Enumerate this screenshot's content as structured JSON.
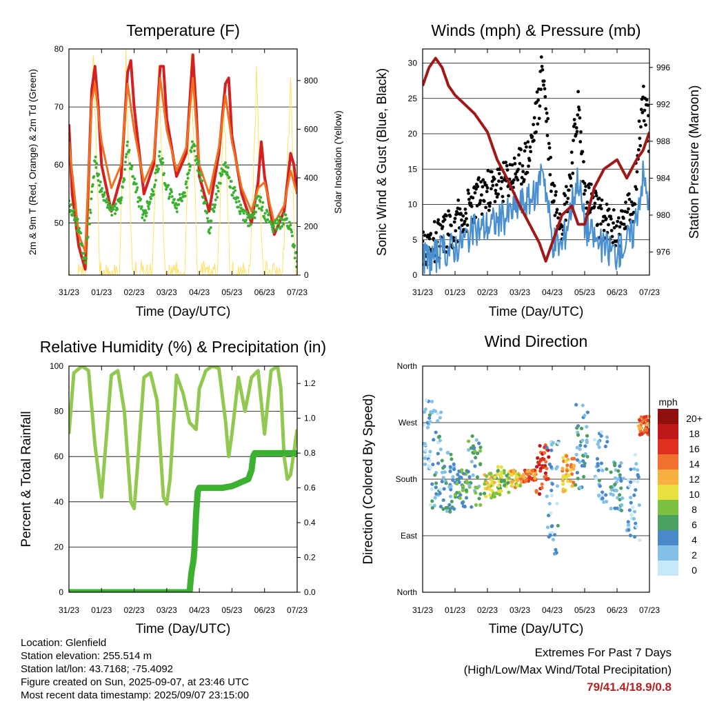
{
  "chart_data": [
    {
      "type": "line",
      "title": "Temperature (F)",
      "xlabel": "Time (Day/UTC)",
      "ylabel": "2m & 9m T (Red, Orange) & 2m Td (Green)",
      "y2label": "Solar Insolation (Yellow)",
      "ylim": [
        41,
        80
      ],
      "y2lim": [
        0,
        930
      ],
      "yticks": [
        "50",
        "60",
        "70",
        "80"
      ],
      "y2ticks": [
        "0",
        "200",
        "400",
        "600",
        "800"
      ],
      "x_ticks": [
        "31/23",
        "01/23",
        "02/23",
        "03/23",
        "04/23",
        "05/23",
        "06/23",
        "07/23"
      ],
      "series": [
        {
          "name": "2m T",
          "color": "#d42020",
          "x": [
            0,
            0.1,
            0.3,
            0.5,
            0.7,
            0.8,
            0.9,
            1.0,
            1.3,
            1.6,
            1.8,
            1.9,
            2.0,
            2.3,
            2.6,
            2.8,
            2.9,
            3.0,
            3.3,
            3.6,
            3.8,
            3.9,
            4.0,
            4.3,
            4.6,
            4.8,
            4.9,
            5.0,
            5.3,
            5.6,
            5.8,
            5.9,
            6.0,
            6.3,
            6.6,
            6.8,
            6.9,
            7.0
          ],
          "values": [
            67,
            55,
            46,
            42,
            73,
            77,
            70,
            60,
            52,
            58,
            76,
            78,
            70,
            55,
            60,
            77,
            77,
            68,
            58,
            62,
            79,
            70,
            58,
            52,
            62,
            74,
            75,
            65,
            55,
            50,
            57,
            64,
            58,
            48,
            52,
            62,
            60,
            55
          ]
        },
        {
          "name": "9m T",
          "color": "#f07020",
          "x": [
            0,
            0.3,
            0.5,
            0.7,
            0.8,
            1.0,
            1.3,
            1.6,
            1.8,
            2.0,
            2.3,
            2.6,
            2.8,
            3.0,
            3.3,
            3.6,
            3.8,
            4.0,
            4.3,
            4.6,
            4.8,
            5.0,
            5.3,
            5.6,
            5.8,
            6.0,
            6.3,
            6.6,
            6.8,
            7.0
          ],
          "values": [
            64,
            48,
            45,
            71,
            74,
            64,
            56,
            60,
            74,
            66,
            57,
            61,
            75,
            66,
            59,
            63,
            75,
            60,
            55,
            63,
            72,
            64,
            56,
            52,
            56,
            57,
            50,
            53,
            59,
            55
          ]
        },
        {
          "name": "2m Td",
          "color": "#3cb030",
          "x": [
            0,
            0.3,
            0.5,
            0.7,
            0.8,
            1.0,
            1.3,
            1.6,
            1.8,
            2.0,
            2.3,
            2.6,
            2.8,
            3.0,
            3.3,
            3.6,
            3.8,
            4.0,
            4.3,
            4.6,
            4.8,
            5.0,
            5.3,
            5.6,
            5.8,
            6.0,
            6.3,
            6.6,
            6.8,
            7.0
          ],
          "values": [
            53,
            49,
            43,
            55,
            61,
            55,
            52,
            54,
            63,
            57,
            51,
            56,
            62,
            56,
            53,
            56,
            64,
            59,
            49,
            57,
            60,
            56,
            52,
            50,
            54,
            52,
            49,
            51,
            49,
            43
          ]
        },
        {
          "name": "Solar Insolation",
          "color": "#ffe060",
          "x": [
            0.55,
            0.75,
            0.95,
            1.55,
            1.75,
            1.95,
            2.55,
            2.75,
            2.95,
            3.55,
            3.75,
            3.95,
            4.55,
            4.75,
            4.95,
            5.55,
            5.75,
            5.95,
            6.55,
            6.8,
            6.95
          ],
          "values": [
            0,
            920,
            0,
            0,
            880,
            0,
            0,
            870,
            0,
            0,
            860,
            0,
            0,
            700,
            0,
            0,
            800,
            0,
            0,
            780,
            0
          ]
        }
      ]
    },
    {
      "type": "line",
      "title": "Winds (mph) & Pressure (mb)",
      "xlabel": "Time (Day/UTC)",
      "ylabel": "Sonic Wind & Gust (Blue, Black)",
      "y2label": "Station Pressure (Maroon)",
      "ylim": [
        0,
        32
      ],
      "y2lim": [
        973.5,
        998
      ],
      "yticks": [
        "0",
        "5",
        "10",
        "15",
        "20",
        "25",
        "30"
      ],
      "y2ticks": [
        "976",
        "980",
        "984",
        "988",
        "992",
        "996"
      ],
      "x_ticks": [
        "31/23",
        "01/23",
        "02/23",
        "03/23",
        "04/23",
        "05/23",
        "06/23",
        "07/23"
      ],
      "series": [
        {
          "name": "Sonic Wind",
          "color": "#4a90d0",
          "x": [
            0,
            0.5,
            1.0,
            1.5,
            2.0,
            2.5,
            3.0,
            3.5,
            3.7,
            4.0,
            4.3,
            4.5,
            4.8,
            5.0,
            5.5,
            6.0,
            6.5,
            6.8,
            7.0
          ],
          "values": [
            2,
            3,
            4,
            6,
            7,
            8,
            10,
            11,
            16,
            5,
            4,
            8,
            14,
            7,
            4,
            3,
            6,
            14,
            10
          ]
        },
        {
          "name": "Gust",
          "color": "#000000",
          "x": [
            0,
            0.5,
            1.0,
            1.5,
            2.0,
            2.5,
            3.0,
            3.3,
            3.6,
            3.7,
            4.0,
            4.3,
            4.5,
            4.8,
            5.0,
            5.5,
            6.0,
            6.5,
            6.8,
            7.0
          ],
          "values": [
            4,
            5,
            7,
            10,
            12,
            13,
            15,
            17,
            25,
            30,
            12,
            8,
            12,
            24,
            12,
            8,
            6,
            10,
            25,
            20
          ]
        },
        {
          "name": "Station Pressure",
          "color": "#a01818",
          "x": [
            0,
            0.2,
            0.4,
            0.6,
            0.8,
            1.0,
            1.3,
            1.6,
            2.0,
            2.3,
            2.6,
            3.0,
            3.3,
            3.6,
            3.8,
            4.0,
            4.3,
            4.6,
            4.8,
            5.0,
            5.3,
            5.6,
            6.0,
            6.3,
            6.6,
            6.8,
            7.0
          ],
          "values": [
            994,
            996,
            997,
            996,
            994,
            993,
            992,
            991,
            989,
            986,
            984,
            981,
            979,
            977,
            975,
            977,
            980,
            981,
            979,
            979,
            983,
            985,
            986,
            984,
            986,
            987,
            989
          ]
        }
      ]
    },
    {
      "type": "line",
      "title": "Relative Humidity (%) & Precipitation (in)",
      "xlabel": "Time (Day/UTC)",
      "ylabel": "Percent & Total Rainfall",
      "ylim": [
        0,
        100
      ],
      "y2lim": [
        0,
        1.3
      ],
      "yticks": [
        "0",
        "20",
        "40",
        "60",
        "80",
        "100"
      ],
      "y2ticks": [
        "0.0",
        "0.2",
        "0.4",
        "0.6",
        "0.8",
        "1.0",
        "1.2"
      ],
      "x_ticks": [
        "31/23",
        "01/23",
        "02/23",
        "03/23",
        "04/23",
        "05/23",
        "06/23",
        "07/23"
      ],
      "series": [
        {
          "name": "Relative Humidity",
          "color": "#90c850",
          "x": [
            0,
            0.15,
            0.4,
            0.6,
            0.8,
            1.0,
            1.1,
            1.3,
            1.5,
            1.7,
            1.9,
            2.0,
            2.1,
            2.3,
            2.5,
            2.7,
            2.9,
            3.0,
            3.1,
            3.3,
            3.5,
            3.7,
            3.9,
            4.0,
            4.2,
            4.4,
            4.6,
            4.8,
            4.9,
            5.0,
            5.2,
            5.4,
            5.6,
            5.8,
            6.0,
            6.2,
            6.4,
            6.5,
            6.6,
            6.7,
            6.8,
            7.0
          ],
          "values": [
            70,
            97,
            100,
            98,
            65,
            42,
            60,
            96,
            98,
            80,
            40,
            37,
            55,
            95,
            97,
            85,
            42,
            39,
            50,
            96,
            88,
            75,
            72,
            90,
            98,
            100,
            99,
            76,
            60,
            70,
            95,
            80,
            95,
            98,
            70,
            98,
            100,
            90,
            60,
            50,
            52,
            72
          ]
        },
        {
          "name": "Total Precipitation",
          "color": "#3cb030",
          "x": [
            0,
            3.6,
            3.7,
            3.75,
            3.78,
            3.82,
            3.86,
            3.9,
            3.95,
            4.0,
            4.3,
            4.6,
            4.7,
            5.0,
            5.5,
            5.6,
            5.65,
            5.7,
            6.0,
            6.5,
            7.0
          ],
          "values": [
            0,
            0,
            0,
            0.1,
            0.14,
            0.18,
            0.28,
            0.45,
            0.58,
            0.6,
            0.6,
            0.6,
            0.6,
            0.61,
            0.65,
            0.7,
            0.78,
            0.8,
            0.8,
            0.8,
            0.8
          ]
        }
      ]
    },
    {
      "type": "scatter",
      "title": "Wind Direction",
      "xlabel": "Time (Day/UTC)",
      "ylabel": "Direction (Colored By Speed)",
      "ylim": [
        0,
        360
      ],
      "y_ticks": [
        "North",
        "East",
        "South",
        "West",
        "North"
      ],
      "x_ticks": [
        "31/23",
        "01/23",
        "02/23",
        "03/23",
        "04/23",
        "05/23",
        "06/23",
        "07/23"
      ],
      "legend_title": "mph",
      "legend": [
        "0",
        "2",
        "4",
        "6",
        "8",
        "10",
        "12",
        "14",
        "16",
        "18",
        "20+"
      ],
      "colors": [
        "#c6e8f8",
        "#82c0e8",
        "#4a88c8",
        "#4aa060",
        "#7ec040",
        "#e8e040",
        "#f8b040",
        "#f07030",
        "#e03020",
        "#c01818",
        "#901010"
      ],
      "clusters": [
        {
          "x": 0.1,
          "center": 250,
          "spread": 60,
          "speed": 2
        },
        {
          "x": 0.4,
          "center": 210,
          "spread": 80,
          "speed": 3
        },
        {
          "x": 0.8,
          "center": 175,
          "spread": 50,
          "speed": 4
        },
        {
          "x": 1.2,
          "center": 165,
          "spread": 30,
          "speed": 6
        },
        {
          "x": 1.6,
          "center": 190,
          "spread": 60,
          "speed": 5
        },
        {
          "x": 2.1,
          "center": 170,
          "spread": 20,
          "speed": 9
        },
        {
          "x": 2.5,
          "center": 175,
          "spread": 25,
          "speed": 8
        },
        {
          "x": 2.9,
          "center": 180,
          "spread": 15,
          "speed": 11
        },
        {
          "x": 3.3,
          "center": 185,
          "spread": 10,
          "speed": 14
        },
        {
          "x": 3.7,
          "center": 195,
          "spread": 40,
          "speed": 16
        },
        {
          "x": 4.0,
          "center": 150,
          "spread": 90,
          "speed": 3
        },
        {
          "x": 4.5,
          "center": 190,
          "spread": 30,
          "speed": 12
        },
        {
          "x": 4.9,
          "center": 230,
          "spread": 70,
          "speed": 4
        },
        {
          "x": 5.5,
          "center": 200,
          "spread": 60,
          "speed": 3
        },
        {
          "x": 6.0,
          "center": 170,
          "spread": 40,
          "speed": 4
        },
        {
          "x": 6.5,
          "center": 150,
          "spread": 70,
          "speed": 2
        },
        {
          "x": 6.85,
          "center": 265,
          "spread": 15,
          "speed": 14
        }
      ]
    }
  ],
  "info": {
    "location": "Location: Glenfield",
    "elevation": "Station elevation: 255.514 m",
    "latlon": "Station lat/lon: 43.7168; -75.4092",
    "created": "Figure created on Sun, 2025-09-07, at 23:46 UTC",
    "recent": "Most recent data timestamp: 2025/09/07 23:15:00"
  },
  "extremes": {
    "line1": "Extremes For Past 7 Days",
    "line2": "(High/Low/Max Wind/Total Precipitation)",
    "values": "79/41.4/18.9/0.8"
  }
}
